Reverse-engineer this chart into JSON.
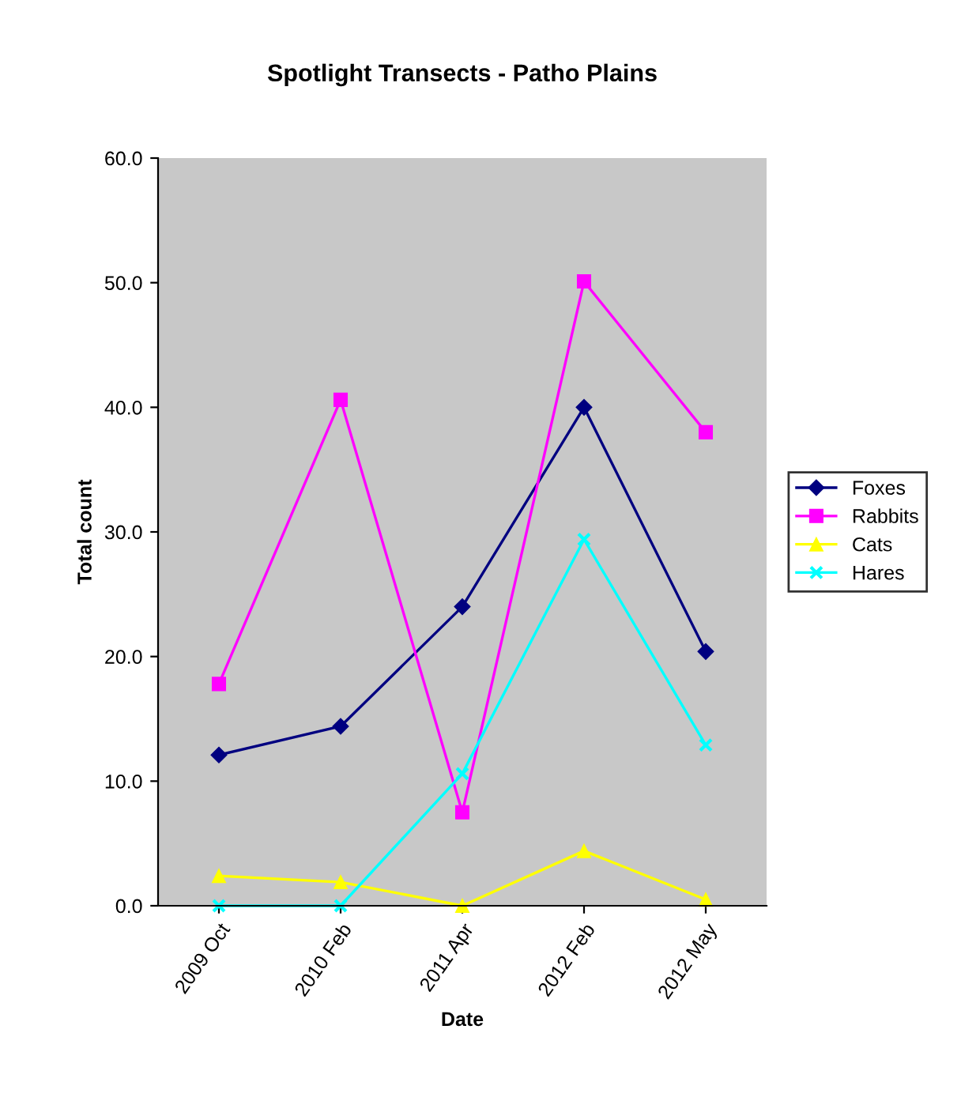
{
  "chart_data": {
    "type": "line",
    "title": "Spotlight Transects - Patho Plains",
    "xlabel": "Date",
    "ylabel": "Total count",
    "categories": [
      "2009 Oct",
      "2010 Feb",
      "2011 Apr",
      "2012 Feb",
      "2012 May"
    ],
    "series": [
      {
        "name": "Foxes",
        "color": "#000080",
        "marker": "diamond",
        "values": [
          12.1,
          14.4,
          24.0,
          40.0,
          20.4
        ]
      },
      {
        "name": "Rabbits",
        "color": "#ff00ff",
        "marker": "square",
        "values": [
          17.8,
          40.6,
          7.5,
          50.1,
          38.0
        ]
      },
      {
        "name": "Cats",
        "color": "#ffff00",
        "marker": "triangle",
        "values": [
          2.4,
          1.9,
          0.0,
          4.4,
          0.5
        ]
      },
      {
        "name": "Hares",
        "color": "#00ffff",
        "marker": "cross",
        "values": [
          0.0,
          0.0,
          10.6,
          29.4,
          12.9
        ]
      }
    ],
    "ylim": [
      0,
      60
    ],
    "yticks": [
      {
        "value": 0,
        "label": "0.0"
      },
      {
        "value": 10,
        "label": "10.0"
      },
      {
        "value": 20,
        "label": "20.0"
      },
      {
        "value": 30,
        "label": "30.0"
      },
      {
        "value": 40,
        "label": "40.0"
      },
      {
        "value": 50,
        "label": "50.0"
      },
      {
        "value": 60,
        "label": "60.0"
      }
    ],
    "grid": false,
    "legend": "right",
    "line_style": "solid"
  }
}
